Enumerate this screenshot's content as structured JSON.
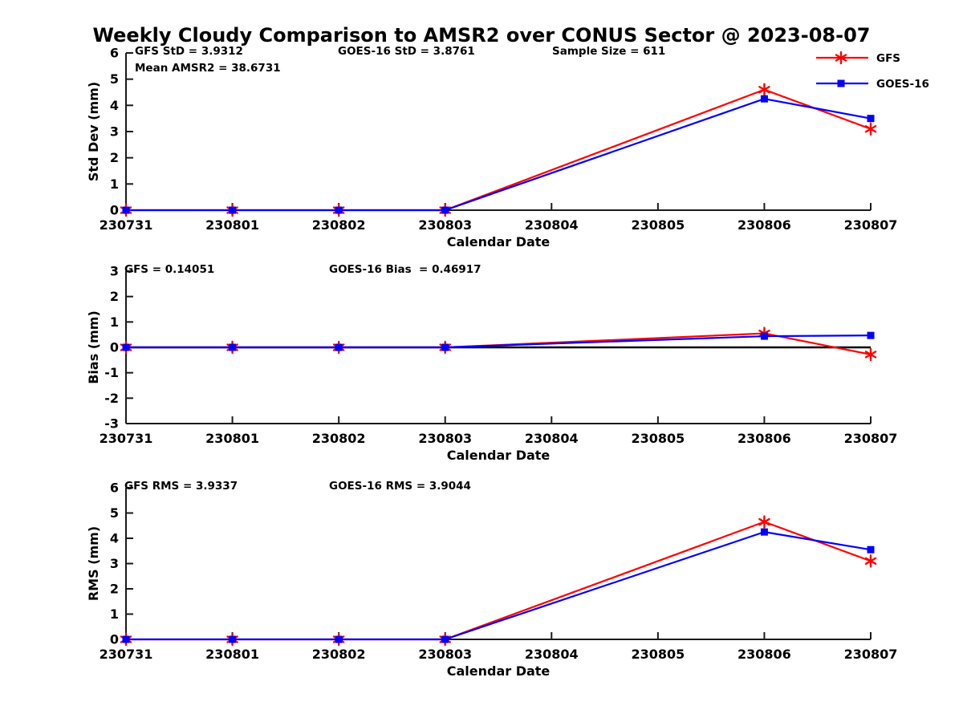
{
  "title": "Weekly Cloudy Comparison to AMSR2 over CONUS Sector @ 2023-08-07",
  "colors": {
    "gfs": "#ff0000",
    "goes16": "#0000ff",
    "axis": "#1a1a1a",
    "zero_line": "#000000"
  },
  "legend": {
    "position": "top-right",
    "items": [
      {
        "label": "GFS",
        "color": "#ff0000",
        "marker": "star"
      },
      {
        "label": "GOES-16",
        "color": "#0000ff",
        "marker": "square"
      }
    ]
  },
  "chart_data": [
    {
      "type": "line",
      "name": "std-dev",
      "xlabel": "Calendar Date",
      "ylabel": "Std Dev (mm)",
      "x_ticks": [
        "230731",
        "230801",
        "230802",
        "230803",
        "230804",
        "230805",
        "230806",
        "230807"
      ],
      "y_ticks": [
        "6",
        "5",
        "4",
        "3",
        "2",
        "1",
        "0"
      ],
      "ylim": [
        0,
        6
      ],
      "grid": false,
      "zero_line": false,
      "x": [
        "230731",
        "230801",
        "230802",
        "230803",
        "230806",
        "230807"
      ],
      "series": [
        {
          "name": "GFS",
          "color": "#ff0000",
          "marker": "star",
          "values": [
            0,
            0,
            0,
            0,
            4.6,
            3.1
          ]
        },
        {
          "name": "GOES-16",
          "color": "#0000ff",
          "marker": "square",
          "values": [
            0,
            0,
            0,
            0,
            4.25,
            3.5
          ]
        }
      ],
      "annotations": [
        {
          "text": "GFS StD = 3.9312",
          "col": 0,
          "row": 0
        },
        {
          "text": "Mean AMSR2 = 38.6731",
          "col": 0,
          "row": 1
        },
        {
          "text": "GOES-16 StD = 3.8761",
          "col": 1,
          "row": 0
        },
        {
          "text": "Sample Size = 611",
          "col": 2,
          "row": 0
        }
      ]
    },
    {
      "type": "line",
      "name": "bias",
      "xlabel": "Calendar Date",
      "ylabel": "Bias (mm)",
      "x_ticks": [
        "230731",
        "230801",
        "230802",
        "230803",
        "230804",
        "230805",
        "230806",
        "230807"
      ],
      "y_ticks": [
        "3",
        "2",
        "1",
        "0",
        "-1",
        "-2",
        "-3"
      ],
      "ylim": [
        -3,
        3
      ],
      "grid": false,
      "zero_line": true,
      "x": [
        "230731",
        "230801",
        "230802",
        "230803",
        "230806",
        "230807"
      ],
      "series": [
        {
          "name": "GFS",
          "color": "#ff0000",
          "marker": "star",
          "values": [
            0,
            0,
            0,
            0,
            0.55,
            -0.28
          ]
        },
        {
          "name": "GOES-16",
          "color": "#0000ff",
          "marker": "square",
          "values": [
            0,
            0,
            0,
            0,
            0.44,
            0.47
          ]
        }
      ],
      "annotations": [
        {
          "text": "GFS = 0.14051",
          "col": 0,
          "row": 0
        },
        {
          "text": "GOES-16 Bias  = 0.46917",
          "col": 1,
          "row": 0
        }
      ]
    },
    {
      "type": "line",
      "name": "rms",
      "xlabel": "Calendar Date",
      "ylabel": "RMS (mm)",
      "x_ticks": [
        "230731",
        "230801",
        "230802",
        "230803",
        "230804",
        "230805",
        "230806",
        "230807"
      ],
      "y_ticks": [
        "6",
        "5",
        "4",
        "3",
        "2",
        "1",
        "0"
      ],
      "ylim": [
        0,
        6
      ],
      "grid": false,
      "zero_line": false,
      "x": [
        "230731",
        "230801",
        "230802",
        "230803",
        "230806",
        "230807"
      ],
      "series": [
        {
          "name": "GFS",
          "color": "#ff0000",
          "marker": "star",
          "values": [
            0,
            0,
            0,
            0,
            4.65,
            3.1
          ]
        },
        {
          "name": "GOES-16",
          "color": "#0000ff",
          "marker": "square",
          "values": [
            0,
            0,
            0,
            0,
            4.25,
            3.55
          ]
        }
      ],
      "annotations": [
        {
          "text": "GFS RMS = 3.9337",
          "col": 0,
          "row": 0
        },
        {
          "text": "GOES-16 RMS = 3.9044",
          "col": 1,
          "row": 0
        }
      ]
    }
  ]
}
